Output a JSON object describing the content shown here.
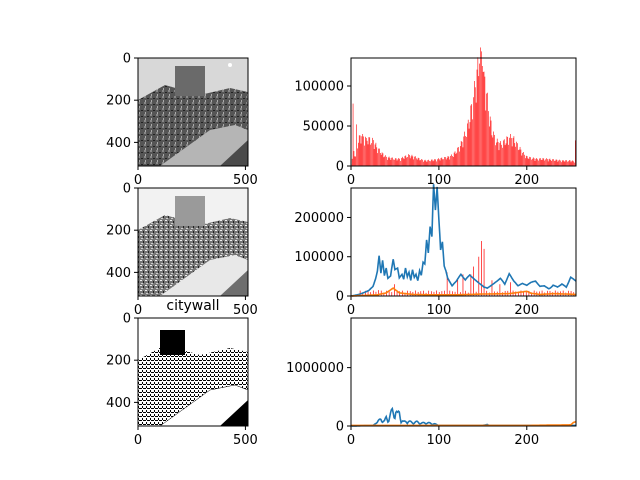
{
  "figure": {
    "image_title": "citywall"
  },
  "chart_data": [
    {
      "type": "image",
      "panel": "original grayscale image",
      "xticks": [
        "0",
        "500"
      ],
      "yticks": [
        "0",
        "200",
        "400"
      ],
      "xlim": [
        0,
        512
      ],
      "ylim": [
        512,
        0
      ]
    },
    {
      "type": "bar",
      "panel": "histogram of original",
      "colors": {
        "bars": "#ff0000"
      },
      "xlim": [
        0,
        256
      ],
      "ylim": [
        0,
        135000
      ],
      "xticks": [
        "0",
        "100",
        "200"
      ],
      "yticks": [
        "0",
        "50000",
        "100000"
      ],
      "profile": [
        [
          0,
          3000
        ],
        [
          3,
          18000
        ],
        [
          5,
          10000
        ],
        [
          8,
          30000
        ],
        [
          12,
          35000
        ],
        [
          16,
          32000
        ],
        [
          20,
          30000
        ],
        [
          25,
          28000
        ],
        [
          30,
          20000
        ],
        [
          35,
          14000
        ],
        [
          40,
          10000
        ],
        [
          45,
          9000
        ],
        [
          50,
          8000
        ],
        [
          55,
          8000
        ],
        [
          60,
          10000
        ],
        [
          65,
          12000
        ],
        [
          70,
          11000
        ],
        [
          75,
          9000
        ],
        [
          80,
          7000
        ],
        [
          85,
          6000
        ],
        [
          90,
          6500
        ],
        [
          95,
          7000
        ],
        [
          100,
          8000
        ],
        [
          105,
          9000
        ],
        [
          110,
          10000
        ],
        [
          115,
          12000
        ],
        [
          120,
          17000
        ],
        [
          125,
          25000
        ],
        [
          130,
          37000
        ],
        [
          135,
          55000
        ],
        [
          140,
          85000
        ],
        [
          144,
          110000
        ],
        [
          147,
          122000
        ],
        [
          150,
          115000
        ],
        [
          153,
          90000
        ],
        [
          156,
          65000
        ],
        [
          160,
          40000
        ],
        [
          165,
          28000
        ],
        [
          170,
          25000
        ],
        [
          175,
          28000
        ],
        [
          180,
          33000
        ],
        [
          185,
          30000
        ],
        [
          190,
          22000
        ],
        [
          195,
          15000
        ],
        [
          200,
          10000
        ],
        [
          210,
          8000
        ],
        [
          220,
          8000
        ],
        [
          230,
          7000
        ],
        [
          240,
          6000
        ],
        [
          250,
          6000
        ],
        [
          255,
          5000
        ]
      ],
      "spikes": [
        [
          2,
          78000
        ],
        [
          6,
          52000
        ],
        [
          13,
          40000
        ],
        [
          17,
          35000
        ],
        [
          146,
          128000
        ],
        [
          149,
          125000
        ],
        [
          151,
          118000
        ],
        [
          181,
          40000
        ],
        [
          255,
          32000
        ]
      ]
    },
    {
      "type": "image",
      "panel": "second grayscale image",
      "xticks": [
        "0",
        "500"
      ],
      "yticks": [
        "0",
        "200",
        "400"
      ],
      "xlim": [
        0,
        512
      ],
      "ylim": [
        512,
        0
      ]
    },
    {
      "type": "line",
      "panel": "histograms comparison",
      "colors": {
        "blue": "#1f77b4",
        "red": "#ff0000",
        "orange": "#ff7f0e"
      },
      "xlim": [
        0,
        256
      ],
      "ylim": [
        0,
        275000
      ],
      "xticks": [
        "0",
        "100",
        "200"
      ],
      "yticks": [
        "0",
        "100000",
        "200000"
      ],
      "blue": [
        [
          0,
          0
        ],
        [
          10,
          5000
        ],
        [
          20,
          12000
        ],
        [
          25,
          20000
        ],
        [
          28,
          35000
        ],
        [
          30,
          50000
        ],
        [
          32,
          80000
        ],
        [
          34,
          45000
        ],
        [
          36,
          70000
        ],
        [
          38,
          40000
        ],
        [
          40,
          55000
        ],
        [
          42,
          35000
        ],
        [
          45,
          40000
        ],
        [
          48,
          75000
        ],
        [
          50,
          55000
        ],
        [
          53,
          60000
        ],
        [
          55,
          40000
        ],
        [
          58,
          50000
        ],
        [
          60,
          40000
        ],
        [
          62,
          70000
        ],
        [
          64,
          50000
        ],
        [
          66,
          65000
        ],
        [
          68,
          45000
        ],
        [
          70,
          80000
        ],
        [
          72,
          60000
        ],
        [
          74,
          75000
        ],
        [
          76,
          55000
        ],
        [
          78,
          85000
        ],
        [
          80,
          65000
        ],
        [
          82,
          100000
        ],
        [
          84,
          90000
        ],
        [
          86,
          150000
        ],
        [
          88,
          110000
        ],
        [
          90,
          170000
        ],
        [
          92,
          140000
        ],
        [
          94,
          255000
        ],
        [
          96,
          190000
        ],
        [
          98,
          235000
        ],
        [
          100,
          160000
        ],
        [
          102,
          95000
        ],
        [
          104,
          110000
        ],
        [
          106,
          60000
        ],
        [
          108,
          50000
        ],
        [
          110,
          35000
        ],
        [
          115,
          20000
        ],
        [
          120,
          30000
        ],
        [
          125,
          45000
        ],
        [
          130,
          35000
        ],
        [
          135,
          50000
        ],
        [
          140,
          45000
        ],
        [
          145,
          40000
        ],
        [
          150,
          35000
        ],
        [
          155,
          25000
        ],
        [
          160,
          30000
        ],
        [
          165,
          35000
        ],
        [
          170,
          40000
        ],
        [
          175,
          25000
        ],
        [
          180,
          45000
        ],
        [
          185,
          30000
        ],
        [
          190,
          20000
        ],
        [
          195,
          25000
        ],
        [
          200,
          22000
        ],
        [
          205,
          30000
        ],
        [
          210,
          35000
        ],
        [
          215,
          25000
        ],
        [
          220,
          30000
        ],
        [
          225,
          25000
        ],
        [
          230,
          35000
        ],
        [
          235,
          25000
        ],
        [
          240,
          30000
        ],
        [
          245,
          20000
        ],
        [
          250,
          40000
        ],
        [
          256,
          30000
        ]
      ],
      "orange": [
        [
          0,
          0
        ],
        [
          30,
          3000
        ],
        [
          40,
          8000
        ],
        [
          48,
          20000
        ],
        [
          55,
          8000
        ],
        [
          70,
          4000
        ],
        [
          90,
          3000
        ],
        [
          120,
          3000
        ],
        [
          150,
          5000
        ],
        [
          180,
          6000
        ],
        [
          200,
          12000
        ],
        [
          205,
          7000
        ],
        [
          215,
          4000
        ],
        [
          230,
          6000
        ],
        [
          245,
          5000
        ],
        [
          256,
          4000
        ]
      ],
      "red_spikes": [
        [
          30,
          15000
        ],
        [
          50,
          30000
        ],
        [
          110,
          60000
        ],
        [
          120,
          45000
        ],
        [
          128,
          55000
        ],
        [
          135,
          55000
        ],
        [
          140,
          75000
        ],
        [
          144,
          100000
        ],
        [
          146,
          125000
        ],
        [
          148,
          140000
        ],
        [
          150,
          120000
        ],
        [
          152,
          80000
        ],
        [
          160,
          40000
        ],
        [
          170,
          30000
        ],
        [
          180,
          35000
        ]
      ]
    },
    {
      "type": "image",
      "panel": "binarized image",
      "xticks": [
        "0",
        "500"
      ],
      "yticks": [
        "0",
        "200",
        "400"
      ],
      "xlim": [
        0,
        512
      ],
      "ylim": [
        512,
        0
      ]
    },
    {
      "type": "line",
      "panel": "binarized histogram",
      "colors": {
        "blue": "#1f77b4",
        "orange": "#ff7f0e"
      },
      "xlim": [
        0,
        256
      ],
      "ylim": [
        0,
        1850000
      ],
      "xticks": [
        "0",
        "100",
        "200"
      ],
      "yticks": [
        "0",
        "1000000"
      ],
      "blue": [
        [
          0,
          0
        ],
        [
          25,
          10000
        ],
        [
          30,
          60000
        ],
        [
          34,
          100000
        ],
        [
          38,
          70000
        ],
        [
          40,
          120000
        ],
        [
          42,
          80000
        ],
        [
          45,
          180000
        ],
        [
          47,
          220000
        ],
        [
          49,
          160000
        ],
        [
          51,
          230000
        ],
        [
          53,
          170000
        ],
        [
          55,
          200000
        ],
        [
          57,
          90000
        ],
        [
          60,
          60000
        ],
        [
          65,
          70000
        ],
        [
          70,
          50000
        ],
        [
          75,
          60000
        ],
        [
          80,
          40000
        ],
        [
          85,
          50000
        ],
        [
          90,
          40000
        ],
        [
          95,
          30000
        ],
        [
          100,
          10000
        ],
        [
          150,
          10000
        ],
        [
          155,
          25000
        ],
        [
          157,
          10000
        ],
        [
          200,
          10000
        ],
        [
          256,
          10000
        ]
      ],
      "orange": [
        [
          0,
          10000
        ],
        [
          100,
          10000
        ],
        [
          200,
          10000
        ],
        [
          250,
          20000
        ],
        [
          253,
          60000
        ],
        [
          255,
          70000
        ],
        [
          256,
          70000
        ]
      ]
    }
  ]
}
